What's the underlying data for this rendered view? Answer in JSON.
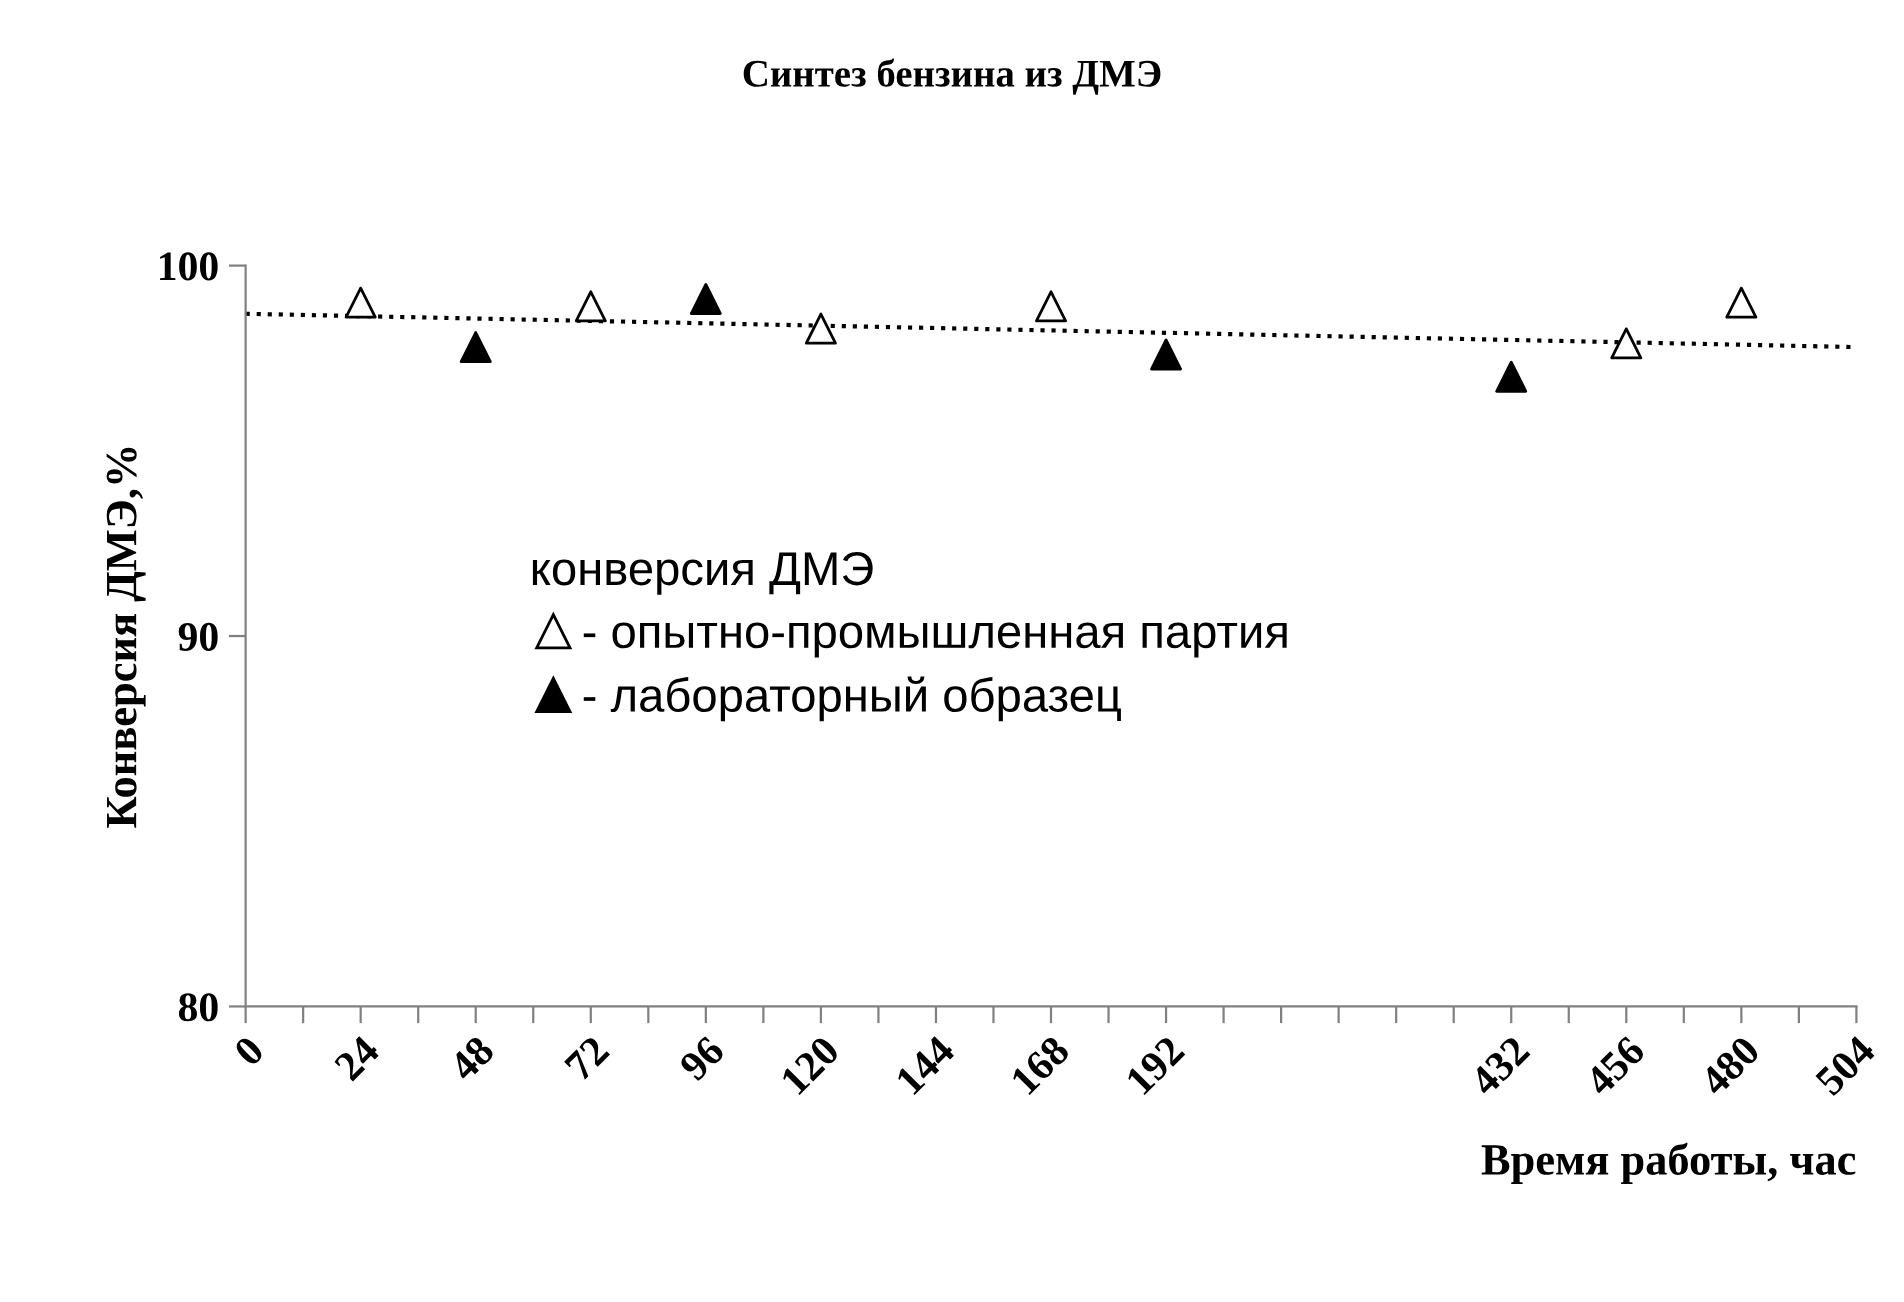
{
  "chart_data": {
    "type": "scatter",
    "title": "Синтез бензина из ДМЭ",
    "xlabel": "Время работы, час",
    "ylabel": "Конверсия ДМЭ,%",
    "legend_title": "конверсия ДМЭ",
    "categories": [
      "0",
      null,
      "24",
      null,
      "48",
      null,
      "72",
      null,
      "96",
      null,
      "120",
      null,
      "144",
      null,
      "168",
      null,
      "192",
      null,
      null,
      null,
      null,
      null,
      "432",
      null,
      "456",
      null,
      "480",
      null,
      "504"
    ],
    "series": [
      {
        "name": "- опытно-промышленная партия",
        "color": "#ffffff",
        "marker": "triangle",
        "values": [
          null,
          null,
          99.0,
          null,
          null,
          null,
          98.9,
          null,
          null,
          null,
          98.3,
          null,
          null,
          null,
          98.9,
          null,
          null,
          null,
          null,
          null,
          null,
          null,
          null,
          null,
          97.9,
          null,
          99.0,
          null,
          null
        ]
      },
      {
        "name": "- лабораторный образец",
        "color": "#000000",
        "marker": "triangle",
        "values": [
          null,
          null,
          null,
          null,
          97.8,
          null,
          null,
          null,
          99.1,
          null,
          null,
          null,
          null,
          null,
          null,
          null,
          97.6,
          null,
          null,
          null,
          null,
          null,
          97.0,
          null,
          null,
          null,
          null,
          null,
          null
        ]
      },
      {
        "type": "line",
        "color": "#000000",
        "line_style": "dotted",
        "marker": "none",
        "values": [
          98.7,
          null,
          null,
          null,
          null,
          null,
          null,
          null,
          null,
          null,
          null,
          null,
          null,
          null,
          null,
          null,
          null,
          null,
          null,
          null,
          null,
          null,
          null,
          null,
          null,
          null,
          null,
          null,
          97.8
        ]
      }
    ],
    "ylim": [
      80,
      100
    ],
    "yticks": [
      80,
      90,
      100
    ],
    "grid": false,
    "legend": "center left"
  }
}
